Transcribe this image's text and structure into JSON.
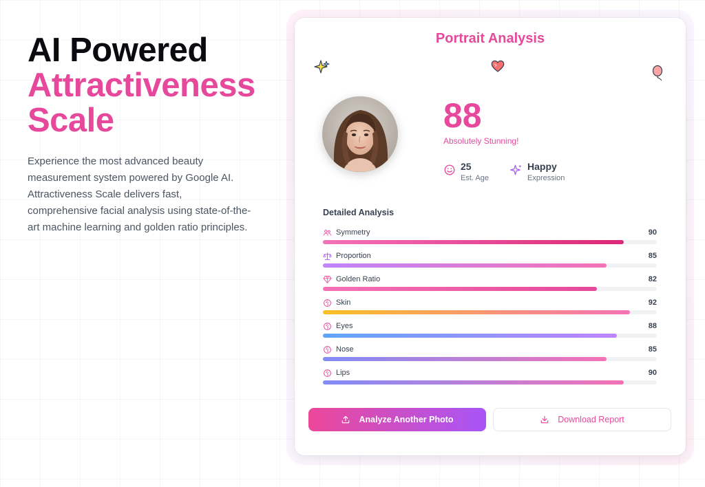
{
  "hero": {
    "title_line1": "AI Powered",
    "title_line2": "Attractiveness",
    "title_line3": "Scale",
    "description": "Experience the most advanced beauty measurement system powered by Google AI. Attractiveness Scale delivers fast, comprehensive facial analysis using state-of-the-art machine learning and golden ratio principles."
  },
  "card": {
    "title": "Portrait Analysis",
    "decorations": [
      "sparkles-icon",
      "heart-icon",
      "balloon-icon"
    ],
    "score": "88",
    "score_label": "Absolutely Stunning!",
    "stats": [
      {
        "value": "25",
        "label": "Est. Age",
        "icon": "smile-icon"
      },
      {
        "value": "Happy",
        "label": "Expression",
        "icon": "sparkle-icon"
      }
    ],
    "detailed_title": "Detailed Analysis",
    "metrics": [
      {
        "name": "Symmetry",
        "value": 90,
        "value_text": "90",
        "icon": "users-icon",
        "gradient": [
          "#f472b6",
          "#db2777"
        ]
      },
      {
        "name": "Proportion",
        "value": 85,
        "value_text": "85",
        "icon": "scale-icon",
        "gradient": [
          "#c084fc",
          "#f472b6"
        ]
      },
      {
        "name": "Golden Ratio",
        "value": 82,
        "value_text": "82",
        "icon": "gem-icon",
        "gradient": [
          "#f472b6",
          "#e6489b"
        ]
      },
      {
        "name": "Skin",
        "value": 92,
        "value_text": "92",
        "icon": "face-icon",
        "gradient": [
          "#fbbf24",
          "#f472b6"
        ]
      },
      {
        "name": "Eyes",
        "value": 88,
        "value_text": "88",
        "icon": "face-icon",
        "gradient": [
          "#60a5fa",
          "#c084fc"
        ]
      },
      {
        "name": "Nose",
        "value": 85,
        "value_text": "85",
        "icon": "face-icon",
        "gradient": [
          "#818cf8",
          "#f472b6"
        ]
      },
      {
        "name": "Lips",
        "value": 90,
        "value_text": "90",
        "icon": "face-icon",
        "gradient": [
          "#818cf8",
          "#f472b6"
        ]
      }
    ],
    "primary_button": "Analyze Another Photo",
    "secondary_button": "Download Report"
  },
  "colors": {
    "accent": "#e6489b",
    "accent_purple": "#a855f7"
  }
}
